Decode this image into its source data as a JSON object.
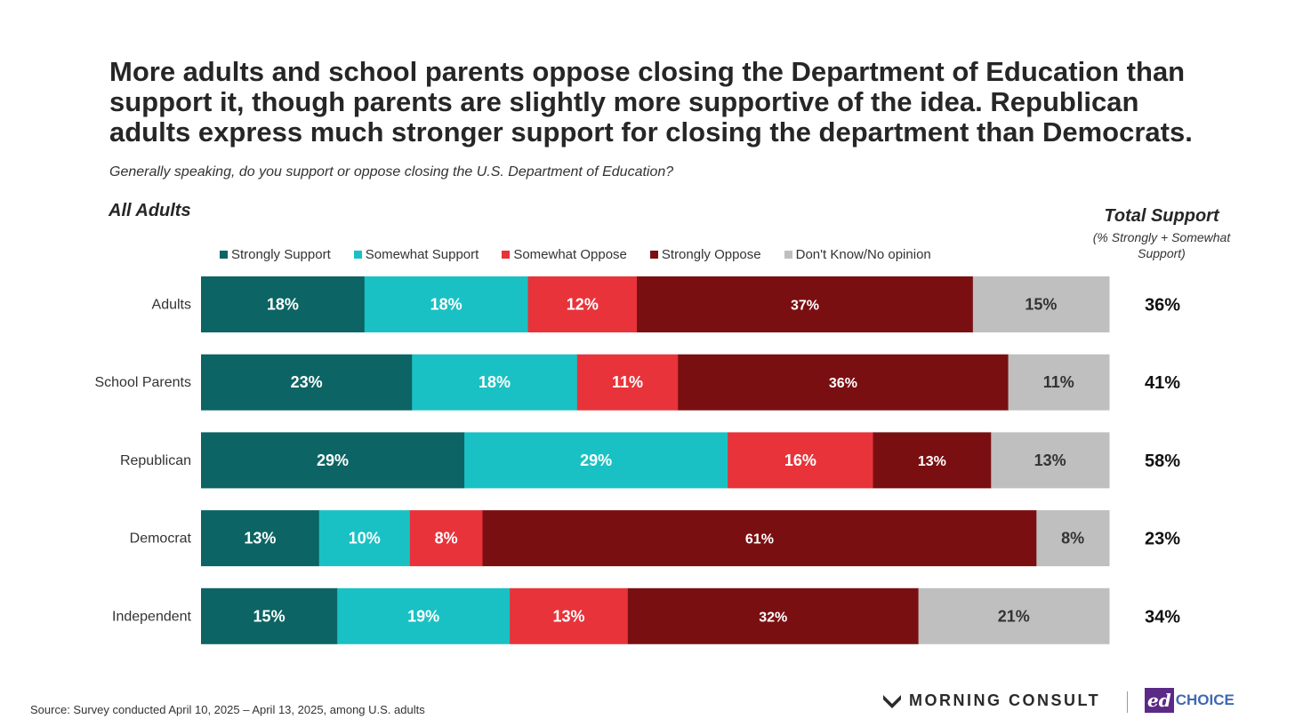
{
  "header": {
    "title": "More adults and school parents oppose closing the Department of Education than support it, though parents are slightly more supportive of the idea. Republican adults express much stronger support for closing the department than Democrats.",
    "subtitle": "Generally speaking, do you support or oppose closing the U.S. Department of Education?",
    "section_label": "All Adults",
    "total_header": "Total Support",
    "total_subheader": "(% Strongly + Somewhat Support)"
  },
  "chart_data": {
    "type": "bar",
    "orientation": "horizontal",
    "stacked": true,
    "legend_position": "top",
    "grid": false,
    "xlim": [
      0,
      100
    ],
    "categories": [
      "Adults",
      "School Parents",
      "Republican",
      "Democrat",
      "Independent"
    ],
    "series": [
      {
        "name": "Strongly Support",
        "color": "#0c6464",
        "values": [
          18,
          23,
          29,
          13,
          15
        ]
      },
      {
        "name": "Somewhat Support",
        "color": "#19c1c4",
        "values": [
          18,
          18,
          29,
          10,
          19
        ]
      },
      {
        "name": "Somewhat Oppose",
        "color": "#e8333a",
        "values": [
          12,
          11,
          16,
          8,
          13
        ]
      },
      {
        "name": "Strongly Oppose",
        "color": "#7a0f12",
        "values": [
          37,
          36,
          13,
          61,
          32
        ]
      },
      {
        "name": "Don't Know/No opinion",
        "color": "#bfbfbf",
        "values": [
          15,
          11,
          13,
          8,
          21
        ]
      }
    ],
    "total_support": [
      "36%",
      "41%",
      "58%",
      "23%",
      "34%"
    ]
  },
  "footer": {
    "source": "Source: Survey conducted April 10, 2025 – April 13, 2025, among U.S. adults",
    "logo_primary": "MORNING CONSULT",
    "logo_secondary_mark": "ed",
    "logo_secondary_word": "CHOICE"
  }
}
